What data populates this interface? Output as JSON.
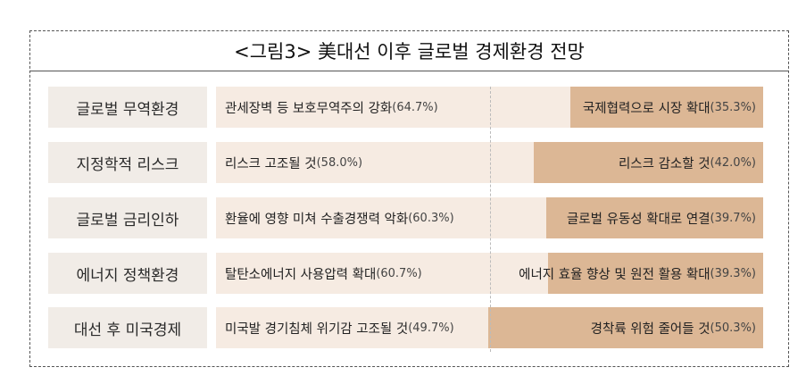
{
  "title": "<그림3> 美대선 이후 글로벌 경제환경 전망",
  "colors": {
    "left_bg": "#f6ebe2",
    "right_fill": "#dcb795",
    "category_bg": "#f1ece7"
  },
  "chart_data": {
    "type": "bar",
    "stacked": true,
    "orientation": "horizontal",
    "title": "<그림3> 美대선 이후 글로벌 경제환경 전망",
    "categories": [
      "글로벌 무역환경",
      "지정학적 리스크",
      "글로벌 금리인하",
      "에너지 정책환경",
      "대선 후 미국경제"
    ],
    "left_labels": [
      "관세장벽 등 보호무역주의 강화",
      "리스크 고조될 것",
      "환율에 영향 미쳐 수출경쟁력 악화",
      "탈탄소에너지 사용압력 확대",
      "미국발 경기침체 위기감 고조될 것"
    ],
    "left_pct_text": [
      "(64.7%)",
      "(58.0%)",
      "(60.3%)",
      "(60.7%)",
      "(49.7%)"
    ],
    "left_values": [
      64.7,
      58.0,
      60.3,
      60.7,
      49.7
    ],
    "right_labels": [
      "국제협력으로 시장 확대",
      "리스크 감소할 것",
      "글로벌 유동성 확대로 연결",
      "에너지 효율 향상 및 원전 활용 확대",
      "경착륙 위험 줄어들 것"
    ],
    "right_pct_text": [
      "(35.3%)",
      "(42.0%)",
      "(39.7%)",
      "(39.3%)",
      "(50.3%)"
    ],
    "right_values": [
      35.3,
      42.0,
      39.7,
      39.3,
      50.3
    ]
  }
}
